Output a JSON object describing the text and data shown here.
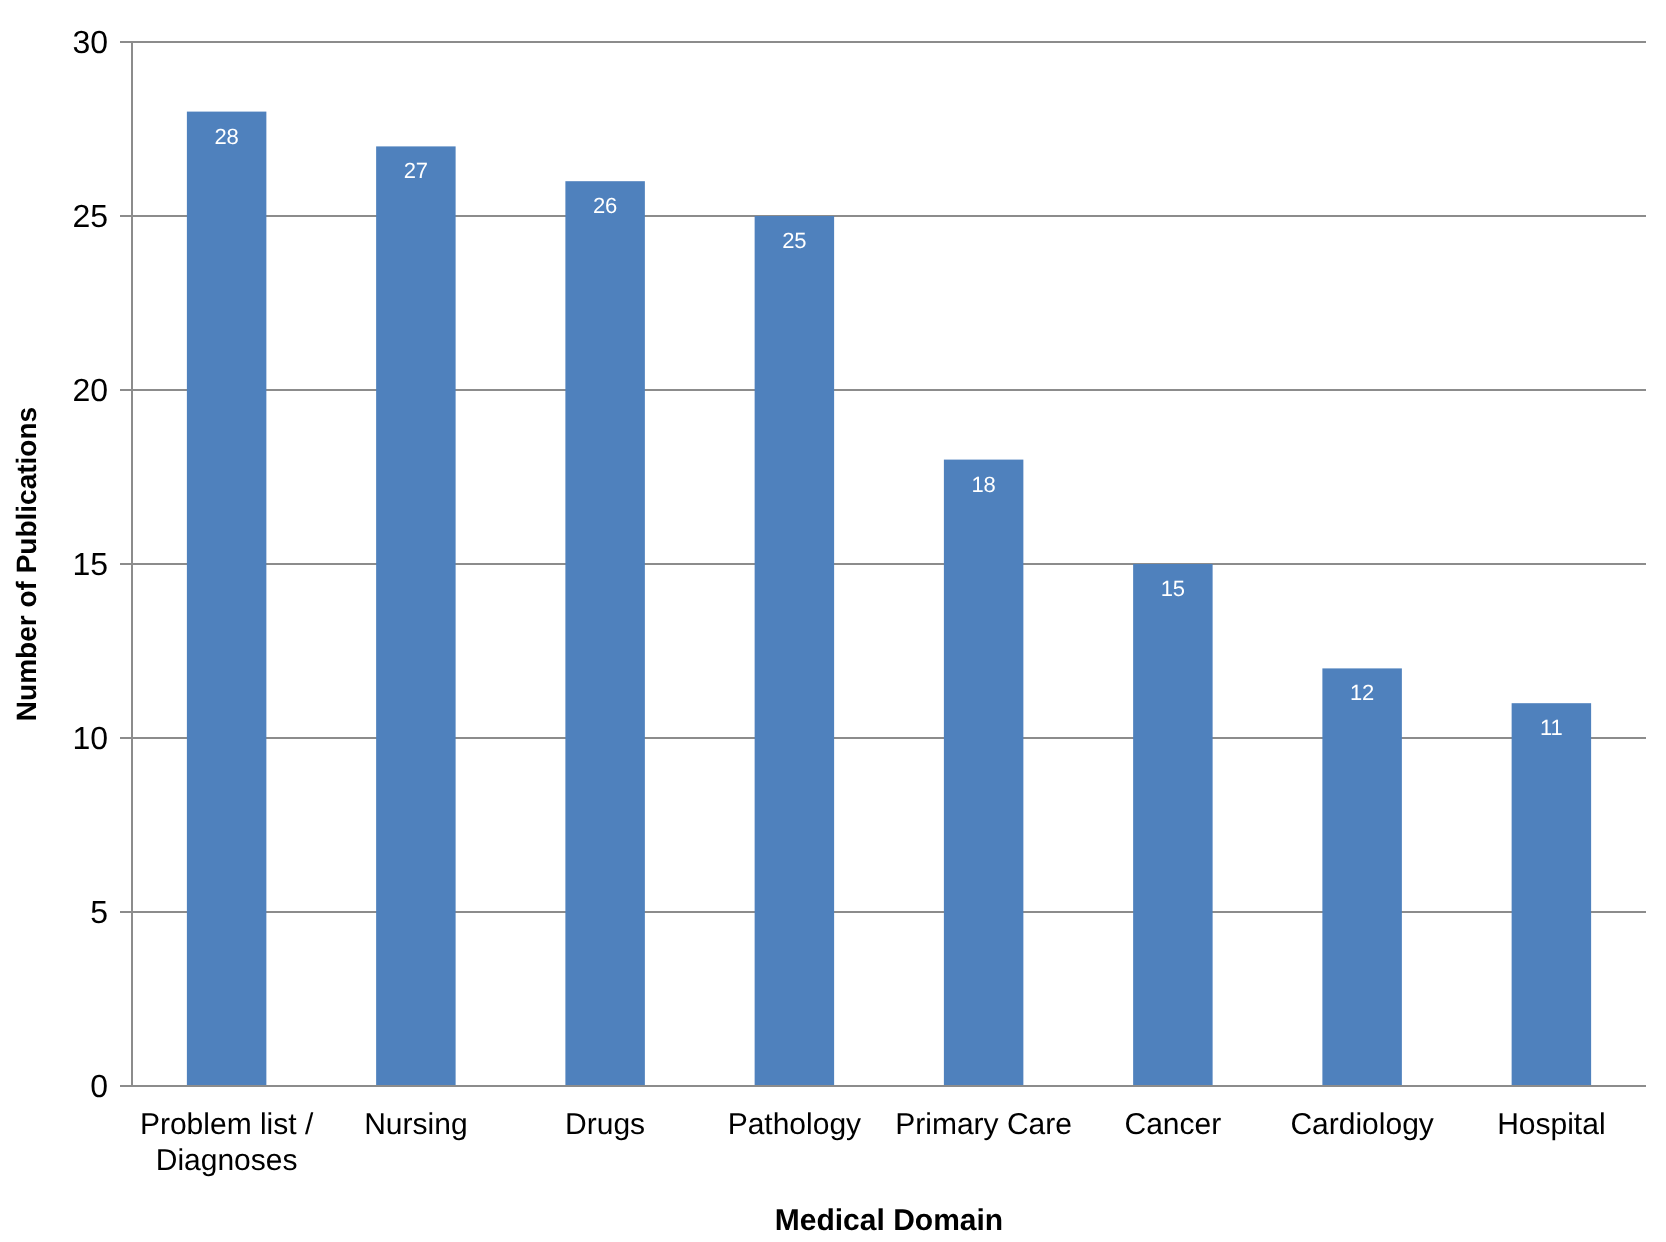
{
  "chart_data": {
    "type": "bar",
    "xlabel": "Medical Domain",
    "ylabel": "Number of Publications",
    "categories": [
      "Problem list / Diagnoses",
      "Nursing",
      "Drugs",
      "Pathology",
      "Primary Care",
      "Cancer",
      "Cardiology",
      "Hospital"
    ],
    "values": [
      28,
      27,
      26,
      25,
      18,
      15,
      12,
      11
    ],
    "color": "#4f81bd",
    "ylim": [
      0,
      30
    ],
    "yticks": [
      0,
      5,
      10,
      15,
      20,
      25,
      30
    ],
    "grid": "y",
    "data_labels": true
  }
}
